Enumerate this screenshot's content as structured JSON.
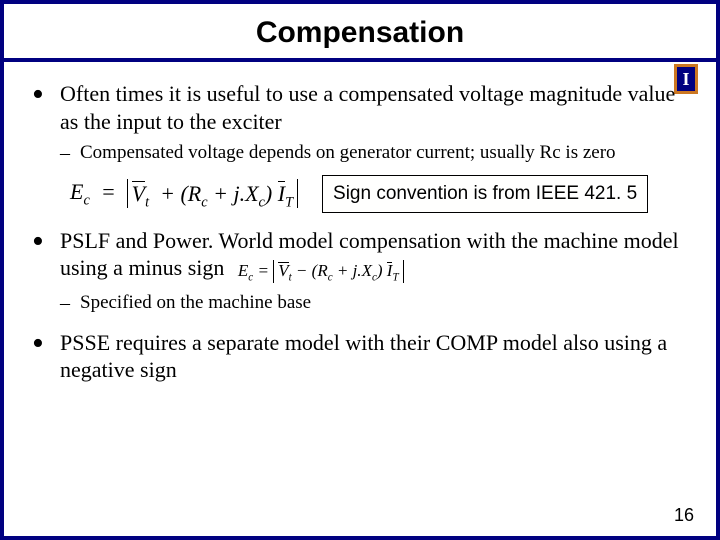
{
  "title": "Compensation",
  "logo_letter": "I",
  "colors": {
    "frame": "#000080",
    "logo_border": "#cc7722",
    "text": "#000000",
    "bg": "#ffffff"
  },
  "bullets": [
    {
      "text": "Often times it is useful to use a compensated voltage magnitude value as the input to the exciter",
      "sub": [
        {
          "text": "Compensated voltage depends on generator current; usually Rc is zero"
        }
      ],
      "equation1": {
        "lhs": "E",
        "lhs_sub": "c",
        "t1": "V",
        "t1_sub": "t",
        "r": "R",
        "r_sub": "c",
        "x": "X",
        "x_sub": "c",
        "i": "I",
        "i_sub": "T",
        "op": "+"
      },
      "callout": "Sign convention is from IEEE 421. 5"
    },
    {
      "text": "PSLF and Power. World model compensation with the machine model using a minus sign",
      "equation2": {
        "lhs": "E",
        "lhs_sub": "c",
        "t1": "V",
        "t1_sub": "t",
        "r": "R",
        "r_sub": "c",
        "x": "X",
        "x_sub": "c",
        "i": "I",
        "i_sub": "T",
        "op": "−"
      },
      "sub": [
        {
          "text": "Specified on the machine base"
        }
      ]
    },
    {
      "text": "PSSE requires a separate model with their COMP model also using a negative sign"
    }
  ],
  "page_number": "16"
}
